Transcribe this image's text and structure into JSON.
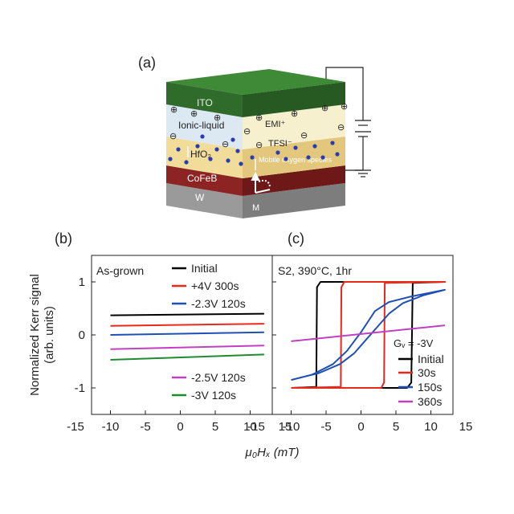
{
  "panel_a": {
    "label": "(a)",
    "layers": {
      "ito": "ITO",
      "ionic": "Ionic-liquid",
      "hfo2": "HfO₂",
      "cofeb": "CoFeB",
      "w": "W",
      "emi": "EMI⁺",
      "tfsi": "TFSI⁻",
      "mobile": "Mobile oxygen species",
      "m": "M"
    },
    "colors": {
      "ito": "#2f6b2a",
      "ionic": "#dce8f2",
      "hfo2": "#f1dc9a",
      "cofeb": "#8c2424",
      "w": "#9a9a9a",
      "dots": "#2a3db0"
    }
  },
  "chart_data": [
    {
      "panel_label": "(b)",
      "type": "line",
      "annotation": "As-grown",
      "xlabel": "μ₀Hₓ (mT)",
      "ylabel": "Normalized Kerr signal",
      "ylabel2": "(arb. units)",
      "xlim": [
        -15,
        15
      ],
      "ylim": [
        -1.5,
        1.5
      ],
      "xticks": [
        "-15",
        "-10",
        "-5",
        "0",
        "5",
        "10",
        "15"
      ],
      "yticks": [
        "1",
        "0",
        "-1"
      ],
      "series": [
        {
          "name": "Initial",
          "color": "#000000",
          "x": [
            -10,
            12
          ],
          "y": [
            0.37,
            0.4
          ]
        },
        {
          "name": "+4V 300s",
          "color": "#e8291c",
          "x": [
            -10,
            12
          ],
          "y": [
            0.17,
            0.21
          ]
        },
        {
          "name": "-2.3V 120s",
          "color": "#1f4fb5",
          "x": [
            -10,
            12
          ],
          "y": [
            0.0,
            0.05
          ]
        },
        {
          "name": "-2.5V 120s",
          "color": "#c040c0",
          "x": [
            -10,
            12
          ],
          "y": [
            -0.27,
            -0.2
          ]
        },
        {
          "name": "-3V 120s",
          "color": "#1e8c2e",
          "x": [
            -10,
            12
          ],
          "y": [
            -0.47,
            -0.37
          ]
        }
      ]
    },
    {
      "panel_label": "(c)",
      "type": "line",
      "annotation": "S2, 390°C, 1hr",
      "legend_title": "Gᵥ = -3V",
      "xlabel": "μ₀Hₓ (mT)",
      "xlim": [
        -15,
        15
      ],
      "ylim": [
        -1.5,
        1.5
      ],
      "xticks": [
        "-15",
        "-10",
        "-5",
        "0",
        "5",
        "10",
        "15"
      ],
      "series": [
        {
          "name": "Initial",
          "color": "#000000",
          "x": [
            -10,
            -6.4,
            -6.3,
            -5.8,
            12,
            7.4,
            7.2,
            6.6,
            -10
          ],
          "y": [
            -1.0,
            -0.98,
            0.9,
            1.0,
            1.0,
            0.98,
            -0.9,
            -1.0,
            -1.0
          ]
        },
        {
          "name": "30s",
          "color": "#e8291c",
          "x": [
            -10,
            -2.9,
            -2.8,
            -2.4,
            12,
            3.4,
            3.3,
            2.9,
            -10
          ],
          "y": [
            -1.0,
            -0.98,
            0.9,
            1.0,
            1.0,
            0.98,
            -0.9,
            -1.0,
            -1.0
          ]
        },
        {
          "name": "150s",
          "color": "#1f4fb5",
          "x": [
            -10,
            -7,
            -4,
            -2,
            0,
            1,
            2,
            4,
            7,
            12,
            9,
            6,
            4,
            2,
            0,
            -1,
            -3,
            -6,
            -10
          ],
          "y": [
            -0.85,
            -0.75,
            -0.55,
            -0.3,
            0.05,
            0.25,
            0.45,
            0.62,
            0.72,
            0.85,
            0.75,
            0.6,
            0.4,
            0.1,
            -0.2,
            -0.35,
            -0.55,
            -0.72,
            -0.85
          ]
        },
        {
          "name": "360s",
          "color": "#c040c0",
          "x": [
            -10,
            12
          ],
          "y": [
            -0.12,
            0.18
          ]
        }
      ]
    }
  ]
}
